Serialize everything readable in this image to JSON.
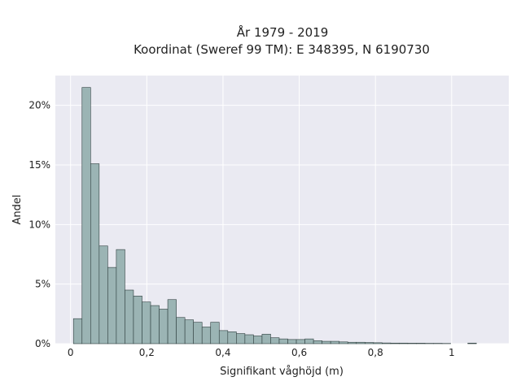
{
  "chart_data": {
    "type": "bar",
    "title_lines": [
      "År 1979 - 2019",
      "Koordinat (Sweref 99 TM): E 348395, N 6190730"
    ],
    "xlabel": "Signifikant våghöjd (m)",
    "ylabel": "Andel",
    "xlim": [
      -0.04,
      1.15
    ],
    "ylim": [
      0,
      22.5
    ],
    "x_ticks": [
      0,
      0.2,
      0.4,
      0.6,
      0.8,
      1
    ],
    "x_tick_labels": [
      "0",
      "0,2",
      "0,4",
      "0,6",
      "0,8",
      "1"
    ],
    "y_ticks": [
      0,
      5,
      10,
      15,
      20
    ],
    "y_tick_labels": [
      "0%",
      "5%",
      "10%",
      "15%",
      "20%"
    ],
    "grid": true,
    "bin_width": 0.0225,
    "bin_start": 0.0075,
    "values": [
      2.1,
      21.5,
      15.1,
      8.2,
      6.4,
      7.9,
      4.5,
      4.0,
      3.5,
      3.2,
      2.9,
      3.7,
      2.2,
      2.0,
      1.8,
      1.4,
      1.8,
      1.1,
      1.0,
      0.85,
      0.75,
      0.65,
      0.8,
      0.5,
      0.4,
      0.35,
      0.35,
      0.4,
      0.25,
      0.2,
      0.2,
      0.15,
      0.12,
      0.12,
      0.1,
      0.08,
      0.06,
      0.05,
      0.05,
      0.04,
      0.04,
      0.03,
      0.03,
      0.02,
      0.0,
      0.0,
      0.05,
      0.0,
      0.0,
      0.0,
      0.0
    ]
  }
}
